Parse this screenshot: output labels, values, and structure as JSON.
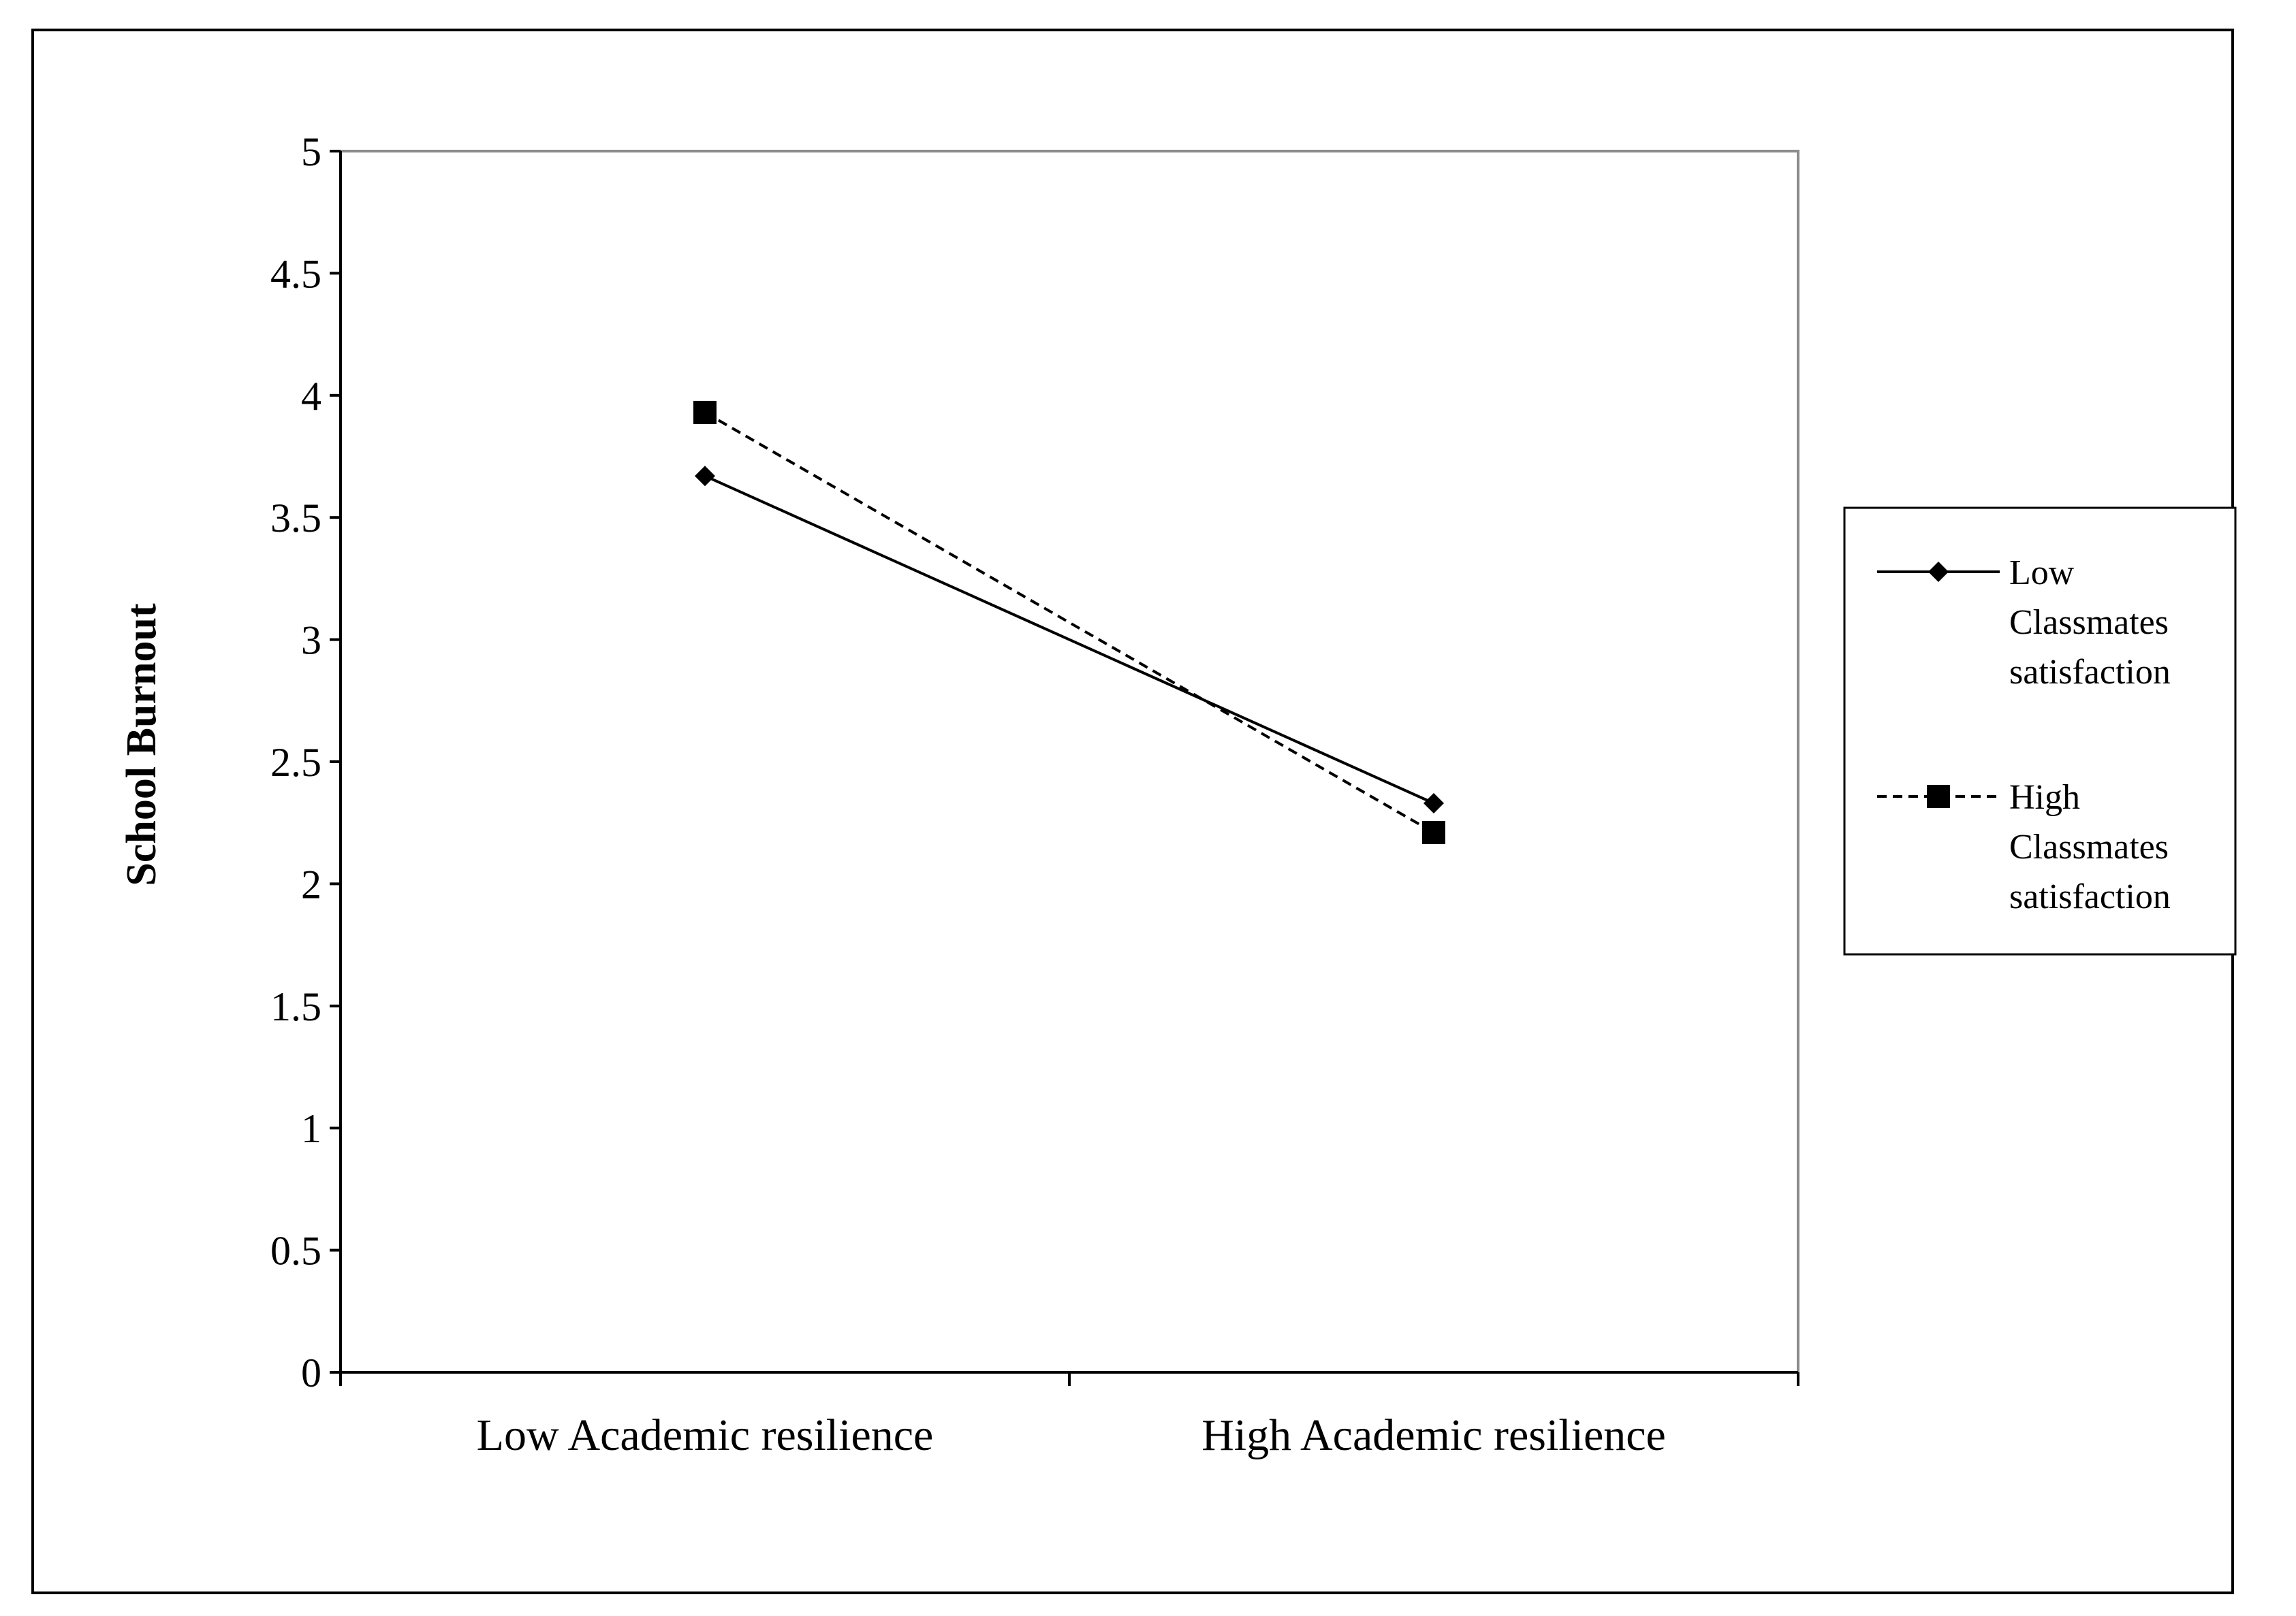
{
  "chart_data": {
    "type": "line",
    "categories": [
      "Low Academic resilience",
      "High Academic resilience"
    ],
    "series": [
      {
        "name": "Low Classmates satisfaction",
        "name_lines": [
          "Low",
          "Classmates",
          "satisfaction"
        ],
        "values": [
          3.67,
          2.33
        ],
        "line_style": "solid",
        "marker": "diamond",
        "color": "#000000"
      },
      {
        "name": "High Classmates satisfaction",
        "name_lines": [
          "High",
          "Classmates",
          "satisfaction"
        ],
        "values": [
          3.93,
          2.21
        ],
        "line_style": "dashed",
        "marker": "square",
        "color": "#000000"
      }
    ],
    "xlabel": "",
    "ylabel": "School Burnout",
    "ylim": [
      0,
      5
    ],
    "yticks": [
      "0",
      "0.5",
      "1",
      "1.5",
      "2",
      "2.5",
      "3",
      "3.5",
      "4",
      "4.5",
      "5"
    ],
    "grid": false,
    "legend_position": "right"
  }
}
